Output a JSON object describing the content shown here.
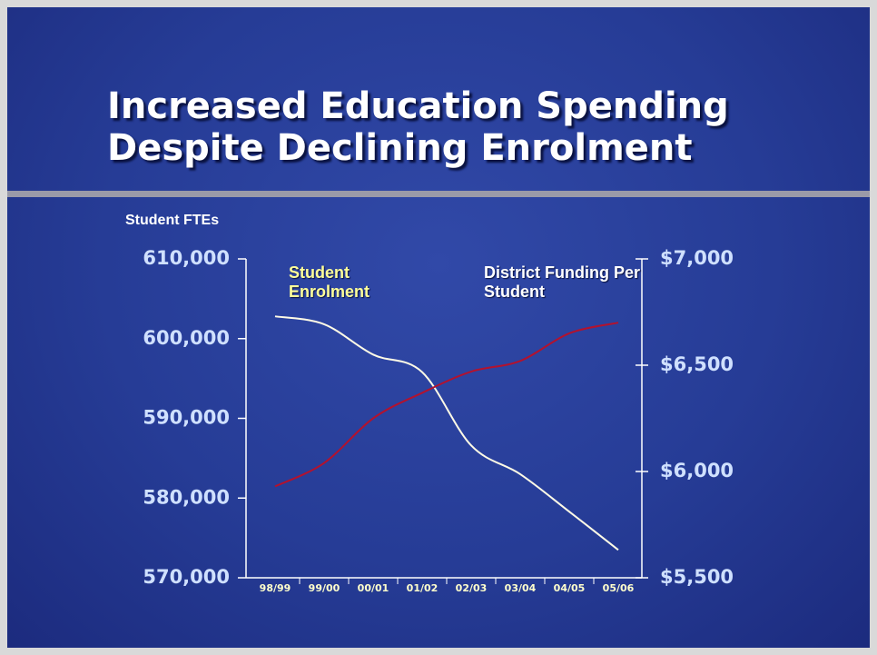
{
  "chart_data": {
    "type": "line",
    "title": "Increased Education Spending Despite Declining Enrolment",
    "y_axis_label": "Student FTEs",
    "categories": [
      "98/99",
      "99/00",
      "00/01",
      "01/02",
      "02/03",
      "03/04",
      "04/05",
      "05/06"
    ],
    "series": [
      {
        "name": "Student Enrolment",
        "color": "#fffbe6",
        "label_color": "#ffff99",
        "values": [
          602800,
          601800,
          598000,
          595800,
          586600,
          583000,
          578300,
          573500
        ]
      },
      {
        "name": "District Funding Per Student",
        "color": "#b3122e",
        "label_color": "#ffffff",
        "axis": "y2",
        "values": [
          5930,
          6040,
          6250,
          6370,
          6470,
          6520,
          6650,
          6700
        ]
      }
    ],
    "ylim": [
      570000,
      610000
    ],
    "yticks": [
      {
        "value": 570000,
        "label": "570,000"
      },
      {
        "value": 580000,
        "label": "580,000"
      },
      {
        "value": 590000,
        "label": "590,000"
      },
      {
        "value": 600000,
        "label": "600,000"
      },
      {
        "value": 610000,
        "label": "610,000"
      }
    ],
    "y2lim": [
      5500,
      7000
    ],
    "y2ticks": [
      {
        "value": 5500,
        "label": "$5,500"
      },
      {
        "value": 6000,
        "label": "$6,000"
      },
      {
        "value": 6500,
        "label": "$6,500"
      },
      {
        "value": 7000,
        "label": "$7,000"
      }
    ]
  }
}
